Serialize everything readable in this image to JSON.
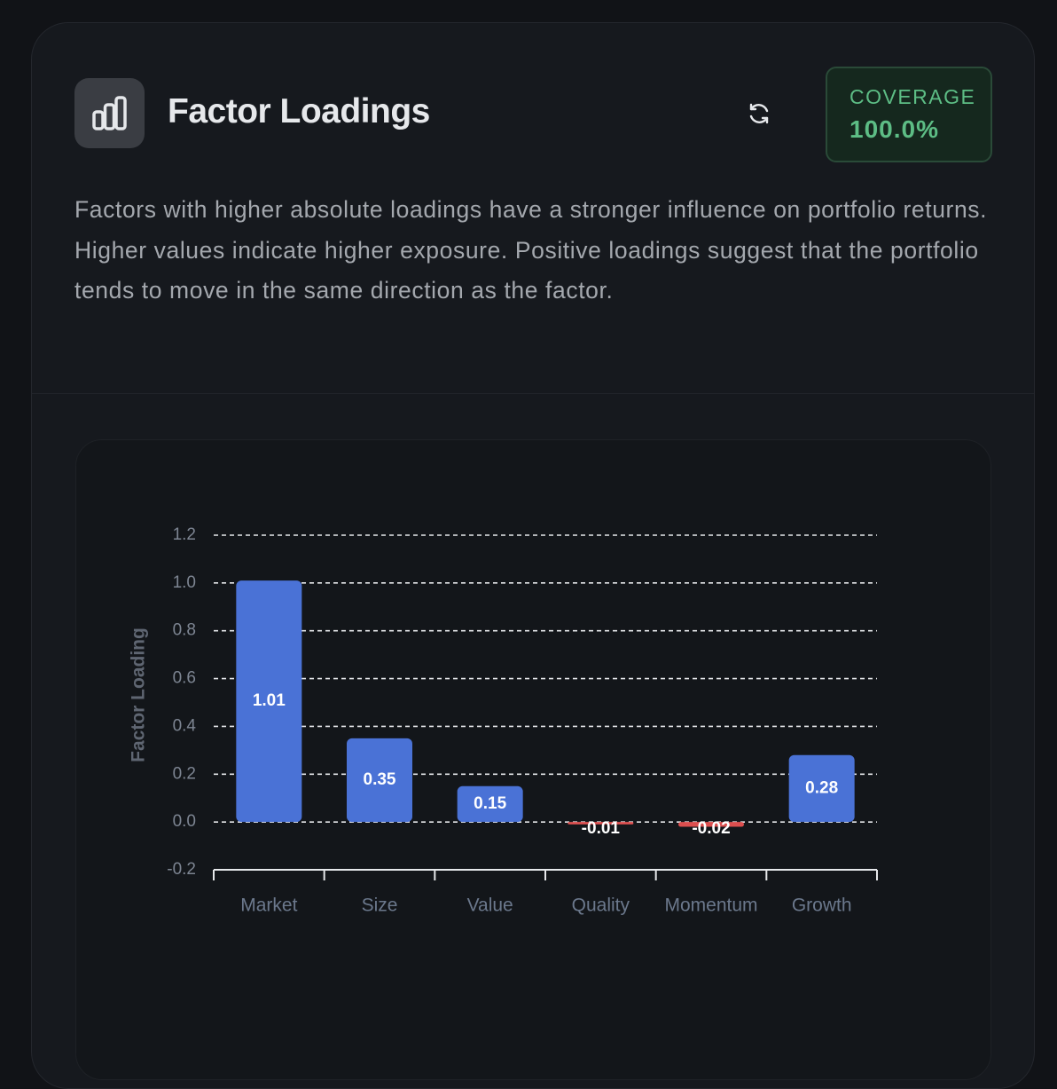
{
  "header": {
    "title": "Factor Loadings",
    "coverage_label": "COVERAGE",
    "coverage_value": "100.0%"
  },
  "description": "Factors with higher absolute loadings have a stronger influence on portfolio returns. Higher values indicate higher exposure. Positive loadings suggest that the portfolio tends to move in the same direction as the factor.",
  "chart_data": {
    "type": "bar",
    "y_label": "Factor Loading",
    "categories": [
      "Market",
      "Size",
      "Value",
      "Quality",
      "Momentum",
      "Growth"
    ],
    "values": [
      1.01,
      0.35,
      0.15,
      -0.01,
      -0.02,
      0.28
    ],
    "color": "#4a72d6",
    "negative_color": "#dc4f4f",
    "ylim": [
      -0.2,
      1.2
    ],
    "yticks": [
      -0.2,
      {
        "value": 0,
        "label": "0.0"
      },
      0.2,
      0.4,
      0.6,
      0.8,
      {
        "value": 1,
        "label": "1.0"
      },
      1.2
    ],
    "grid": true
  }
}
